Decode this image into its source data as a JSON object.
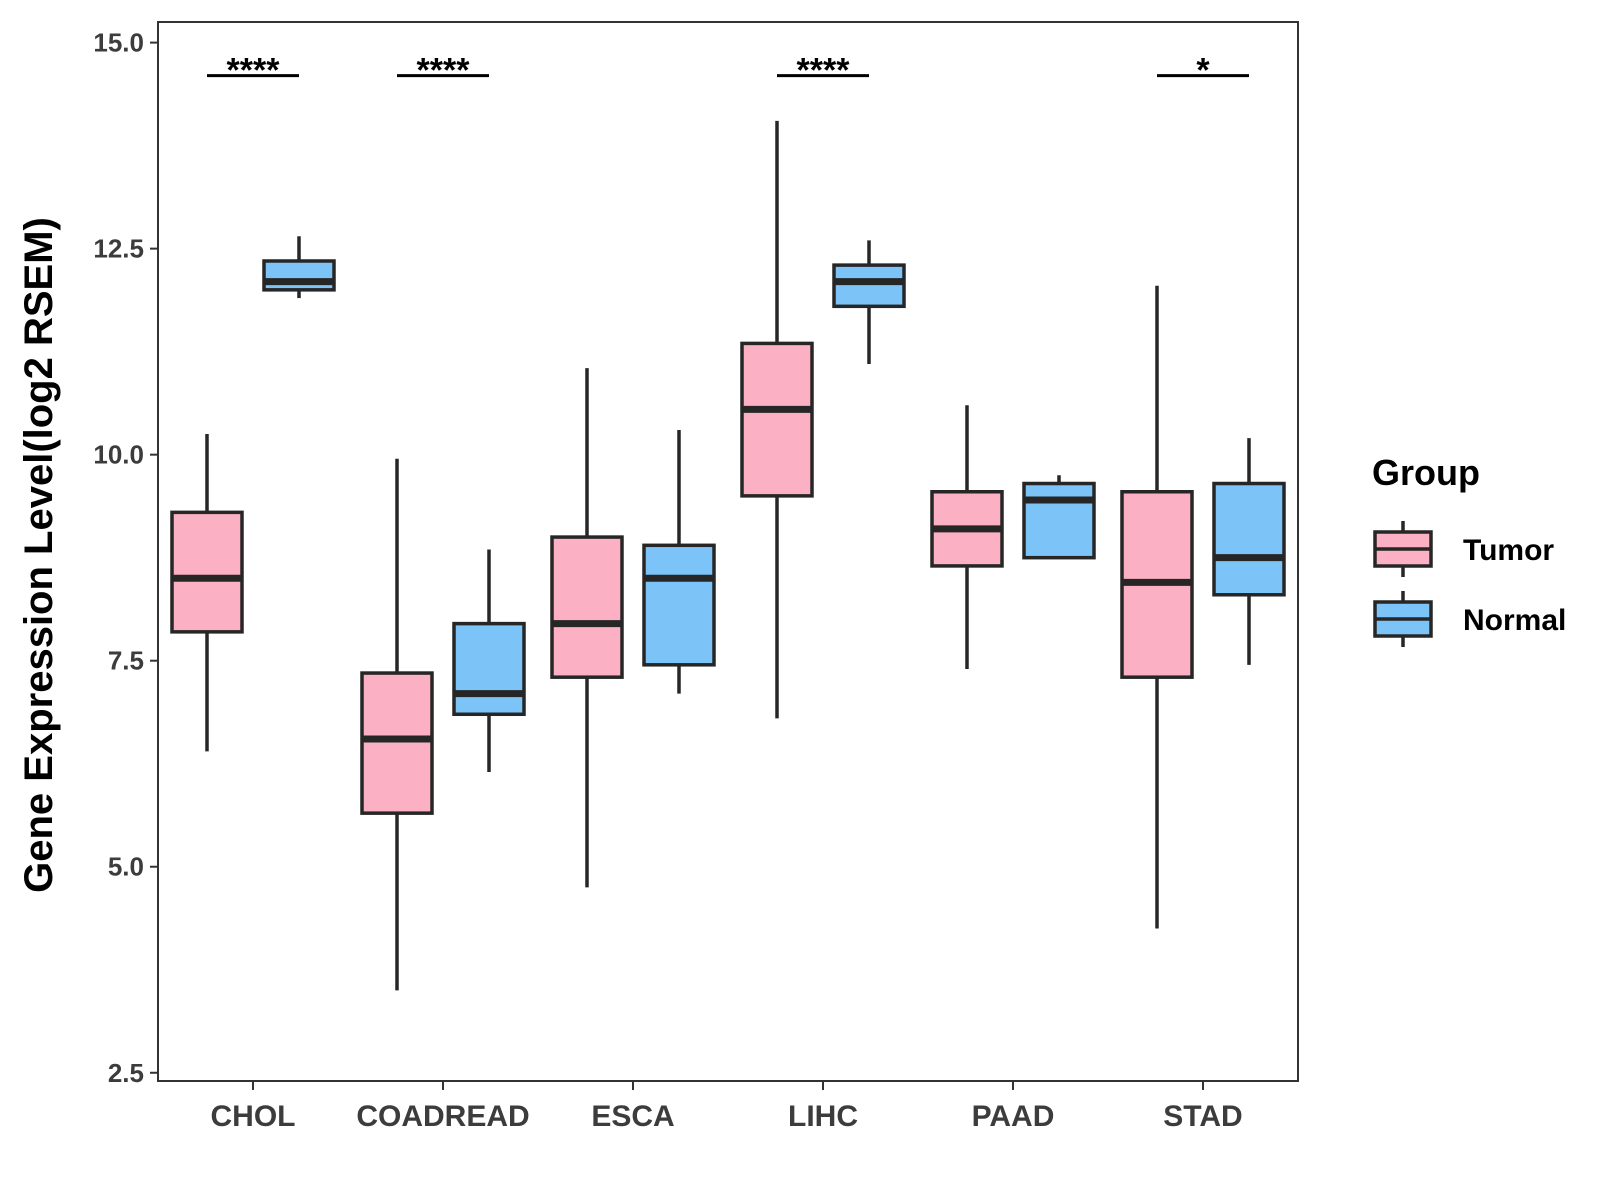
{
  "chart_data": {
    "type": "boxplot",
    "title": "",
    "xlabel": "",
    "ylabel": "Gene Expression Level(log2 RSEM)",
    "ylim": [
      2.4,
      15.25
    ],
    "yticks": [
      2.5,
      5.0,
      7.5,
      10.0,
      12.5,
      15.0
    ],
    "ytick_labels": [
      "2.5",
      "5.0",
      "7.5",
      "10.0",
      "12.5",
      "15.0"
    ],
    "grid": false,
    "categories": [
      "CHOL",
      "COADREAD",
      "ESCA",
      "LIHC",
      "PAAD",
      "STAD"
    ],
    "legend": {
      "title": "Group",
      "position": "right",
      "entries": [
        "Tumor",
        "Normal"
      ]
    },
    "colors": {
      "Tumor": "#fbb1c3",
      "Normal": "#7cc3f7",
      "outline": "#262626"
    },
    "series": [
      {
        "name": "Tumor",
        "boxes": [
          {
            "category": "CHOL",
            "whisker_low": 6.4,
            "q1": 7.85,
            "median": 8.5,
            "q3": 9.3,
            "whisker_high": 10.25
          },
          {
            "category": "COADREAD",
            "whisker_low": 3.5,
            "q1": 5.65,
            "median": 6.55,
            "q3": 7.35,
            "whisker_high": 9.95
          },
          {
            "category": "ESCA",
            "whisker_low": 4.75,
            "q1": 7.3,
            "median": 7.95,
            "q3": 9.0,
            "whisker_high": 11.05
          },
          {
            "category": "LIHC",
            "whisker_low": 6.8,
            "q1": 9.5,
            "median": 10.55,
            "q3": 11.35,
            "whisker_high": 14.05
          },
          {
            "category": "PAAD",
            "whisker_low": 7.4,
            "q1": 8.65,
            "median": 9.1,
            "q3": 9.55,
            "whisker_high": 10.6
          },
          {
            "category": "STAD",
            "whisker_low": 4.25,
            "q1": 7.3,
            "median": 8.45,
            "q3": 9.55,
            "whisker_high": 12.05
          }
        ]
      },
      {
        "name": "Normal",
        "boxes": [
          {
            "category": "CHOL",
            "whisker_low": 11.9,
            "q1": 12.0,
            "median": 12.1,
            "q3": 12.35,
            "whisker_high": 12.65
          },
          {
            "category": "COADREAD",
            "whisker_low": 6.15,
            "q1": 6.85,
            "median": 7.1,
            "q3": 7.95,
            "whisker_high": 8.85
          },
          {
            "category": "ESCA",
            "whisker_low": 7.1,
            "q1": 7.45,
            "median": 8.5,
            "q3": 8.9,
            "whisker_high": 10.3
          },
          {
            "category": "LIHC",
            "whisker_low": 11.1,
            "q1": 11.8,
            "median": 12.1,
            "q3": 12.3,
            "whisker_high": 12.6
          },
          {
            "category": "PAAD",
            "whisker_low": 8.75,
            "q1": 8.75,
            "median": 9.45,
            "q3": 9.65,
            "whisker_high": 9.75
          },
          {
            "category": "STAD",
            "whisker_low": 7.45,
            "q1": 8.3,
            "median": 8.75,
            "q3": 9.65,
            "whisker_high": 10.2
          }
        ]
      }
    ],
    "annotations": [
      {
        "category": "CHOL",
        "label": "****",
        "y": 14.6
      },
      {
        "category": "COADREAD",
        "label": "****",
        "y": 14.6
      },
      {
        "category": "LIHC",
        "label": "****",
        "y": 14.6
      },
      {
        "category": "STAD",
        "label": "*",
        "y": 14.6
      }
    ]
  }
}
